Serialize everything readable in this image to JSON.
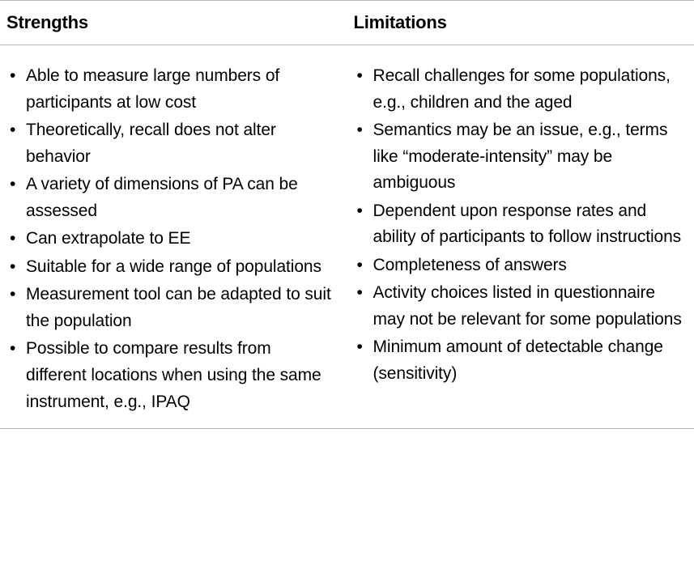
{
  "type": "table",
  "background_color": "#ffffff",
  "text_color": "#000000",
  "border_color": "#b8b8b8",
  "font_family": "Helvetica Neue, Helvetica, Arial, sans-serif",
  "header_fontsize": 22,
  "header_fontweight": 700,
  "body_fontsize": 21,
  "line_height": 1.55,
  "columns": [
    {
      "label": "Strengths"
    },
    {
      "label": "Limitations"
    }
  ],
  "strengths": [
    "Able to measure large numbers of participants at low cost",
    "Theoretically, recall does not alter behavior",
    "A variety of dimensions of PA can be assessed",
    "Can extrapolate to EE",
    "Suitable for a wide range of populations",
    "Measurement tool can be adapted to suit the population",
    "Possible to compare results from different locations when using the same instrument, e.g., IPAQ"
  ],
  "limitations": [
    "Recall challenges for some populations, e.g., children and the aged",
    "Semantics may be an issue, e.g., terms like “moderate-intensity” may be ambiguous",
    "Dependent upon response rates and ability of participants to follow instructions",
    "Completeness of answers",
    "Activity choices listed in questionnaire may not be relevant for some populations",
    "Minimum amount of detectable change (sensitivity)"
  ]
}
